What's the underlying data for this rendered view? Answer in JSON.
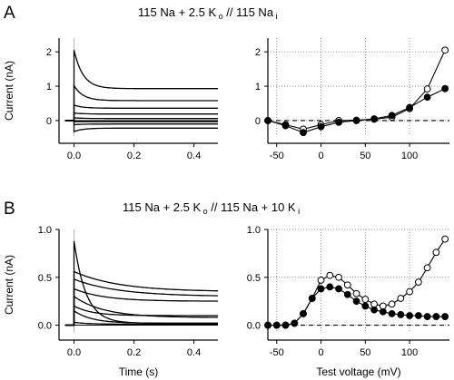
{
  "panels": [
    {
      "letter": "A",
      "title": "115 Na + 2.5 K o // 115 Na i",
      "title_parts": [
        {
          "t": "115 Na + 2.5 K",
          "sub": false
        },
        {
          "t": " o",
          "sub": true
        },
        {
          "t": " // 115 Na",
          "sub": false
        },
        {
          "t": " i",
          "sub": true
        }
      ]
    },
    {
      "letter": "B",
      "title": "115 Na + 2.5 K o // 115 Na + 10 K i",
      "title_parts": [
        {
          "t": "115 Na + 2.5 K",
          "sub": false
        },
        {
          "t": " o",
          "sub": true
        },
        {
          "t": " // 115 Na + 10 K",
          "sub": false
        },
        {
          "t": " i",
          "sub": true
        }
      ]
    }
  ],
  "chart_data": [
    {
      "id": "A-traces",
      "type": "line",
      "ylabel": "Current (nA)",
      "xlabel": "",
      "xlim": [
        -0.05,
        0.48
      ],
      "ylim": [
        -0.45,
        2.4
      ],
      "xticks": [
        0.0,
        0.2,
        0.4
      ],
      "xtick_labels": [
        "0.0",
        "0.2",
        "0.4"
      ],
      "yticks": [
        0,
        1,
        2
      ],
      "ytick_labels": [
        "0",
        "1",
        "2"
      ],
      "zero_line": true,
      "series": [
        {
          "peak": 2.05,
          "steady": 0.93,
          "tau": 0.03
        },
        {
          "peak": 1.02,
          "steady": 0.58,
          "tau": 0.03
        },
        {
          "peak": 0.45,
          "steady": 0.36,
          "tau": 0.03
        },
        {
          "peak": 0.22,
          "steady": 0.19,
          "tau": 0.03
        },
        {
          "peak": 0.08,
          "steady": 0.06,
          "tau": 0.03
        },
        {
          "peak": -0.03,
          "steady": -0.03,
          "tau": 0.03
        },
        {
          "peak": -0.12,
          "steady": -0.1,
          "tau": 0.03
        },
        {
          "peak": -0.32,
          "steady": -0.22,
          "tau": 0.03
        }
      ]
    },
    {
      "id": "A-iv",
      "type": "line",
      "xlabel": "",
      "ylabel": "",
      "xlim": [
        -60,
        145
      ],
      "ylim": [
        -0.45,
        2.4
      ],
      "xticks": [
        -50,
        0,
        50,
        100
      ],
      "xtick_labels": [
        "-50",
        "0",
        "50",
        "100"
      ],
      "yticks": [
        0,
        1,
        2
      ],
      "ytick_labels": [
        "0",
        "1",
        "2"
      ],
      "grid": true,
      "zero_line": "dashed",
      "series": [
        {
          "marker": "open",
          "x": [
            -60,
            -40,
            -20,
            0,
            20,
            40,
            60,
            80,
            100,
            120,
            140
          ],
          "y": [
            0.0,
            -0.12,
            -0.25,
            -0.12,
            0.0,
            0.01,
            0.04,
            0.1,
            0.35,
            0.92,
            2.05
          ]
        },
        {
          "marker": "filled",
          "x": [
            -60,
            -40,
            -20,
            0,
            20,
            40,
            60,
            80,
            100,
            120,
            140
          ],
          "y": [
            0.0,
            -0.15,
            -0.35,
            -0.18,
            -0.05,
            0.0,
            0.05,
            0.15,
            0.38,
            0.68,
            0.93
          ]
        }
      ]
    },
    {
      "id": "B-traces",
      "type": "line",
      "ylabel": "Current (nA)",
      "xlabel": "Time (s)",
      "xlim": [
        -0.05,
        0.48
      ],
      "ylim": [
        -0.08,
        1.0
      ],
      "xticks": [
        0.0,
        0.2,
        0.4
      ],
      "xtick_labels": [
        "0.0",
        "0.2",
        "0.4"
      ],
      "yticks": [
        0.0,
        0.5,
        1.0
      ],
      "ytick_labels": [
        "0.0",
        "0.5",
        "1.0"
      ],
      "zero_line": true,
      "series": [
        {
          "peak": 0.88,
          "steady": 0.02,
          "tau": 0.04
        },
        {
          "peak": 0.56,
          "steady": 0.35,
          "tau": 0.15
        },
        {
          "peak": 0.48,
          "steady": 0.3,
          "tau": 0.15
        },
        {
          "peak": 0.38,
          "steady": 0.25,
          "tau": 0.1
        },
        {
          "peak": 0.3,
          "steady": 0.08,
          "tau": 0.1
        },
        {
          "peak": 0.2,
          "steady": 0.1,
          "tau": 0.06
        },
        {
          "peak": 0.15,
          "steady": 0.02,
          "tau": 0.06
        },
        {
          "peak": 0.03,
          "steady": 0.01,
          "tau": 0.05
        }
      ]
    },
    {
      "id": "B-iv",
      "type": "line",
      "xlabel": "Test voltage (mV)",
      "ylabel": "",
      "xlim": [
        -60,
        145
      ],
      "ylim": [
        -0.08,
        1.0
      ],
      "xticks": [
        -50,
        0,
        50,
        100
      ],
      "xtick_labels": [
        "-50",
        "0",
        "50",
        "100"
      ],
      "yticks": [
        0.0,
        0.5,
        1.0
      ],
      "ytick_labels": [
        "0.0",
        "0.5",
        "1.0"
      ],
      "grid": true,
      "zero_line": "dashed",
      "series": [
        {
          "marker": "open",
          "x": [
            -60,
            -50,
            -40,
            -30,
            -20,
            -10,
            0,
            10,
            20,
            30,
            40,
            50,
            60,
            70,
            80,
            90,
            100,
            110,
            120,
            130,
            140
          ],
          "y": [
            0.0,
            0.0,
            0.0,
            0.02,
            0.12,
            0.28,
            0.47,
            0.52,
            0.5,
            0.42,
            0.33,
            0.27,
            0.22,
            0.2,
            0.22,
            0.28,
            0.35,
            0.45,
            0.6,
            0.76,
            0.9
          ]
        },
        {
          "marker": "filled",
          "x": [
            -60,
            -50,
            -40,
            -30,
            -20,
            -10,
            0,
            10,
            20,
            30,
            40,
            50,
            60,
            70,
            80,
            90,
            100,
            110,
            120,
            130,
            140
          ],
          "y": [
            0.0,
            0.0,
            0.0,
            0.02,
            0.12,
            0.28,
            0.38,
            0.4,
            0.38,
            0.32,
            0.25,
            0.2,
            0.16,
            0.14,
            0.12,
            0.11,
            0.1,
            0.1,
            0.09,
            0.09,
            0.09
          ]
        }
      ]
    }
  ]
}
